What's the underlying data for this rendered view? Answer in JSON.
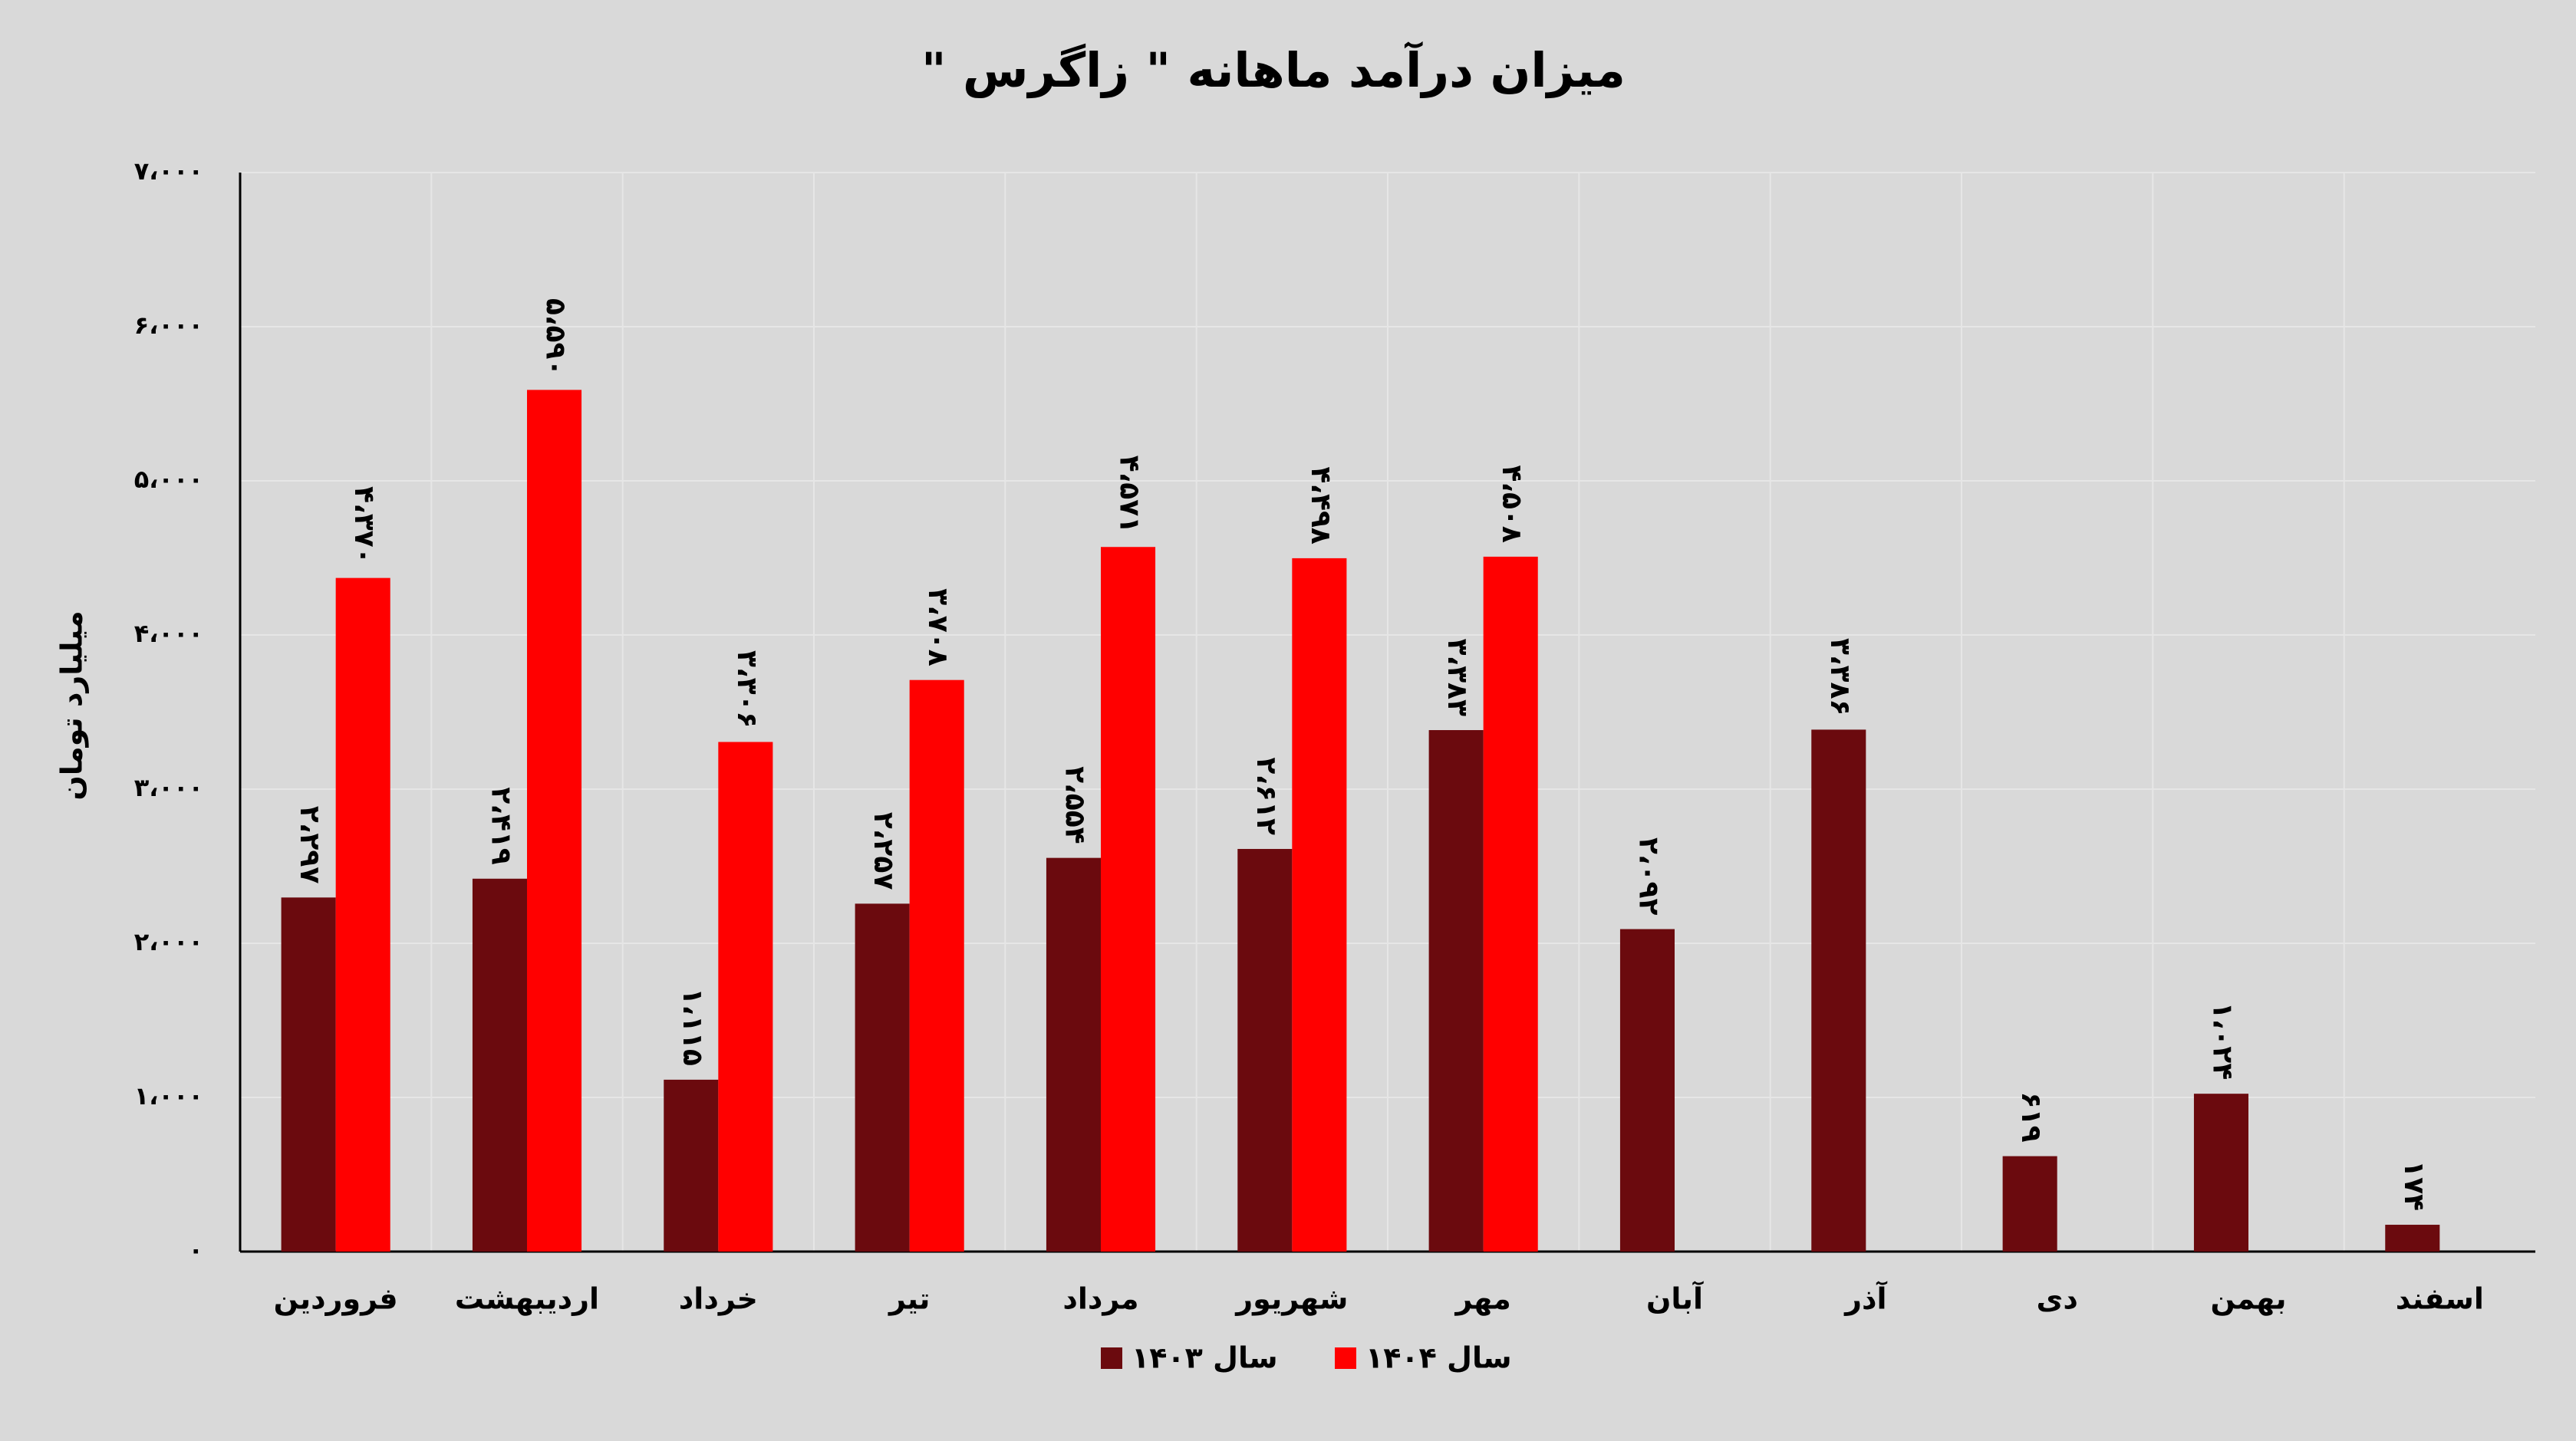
{
  "chart_data": {
    "type": "bar",
    "title": "میزان درآمد ماهانه \" زاگرس \"",
    "y_label": "میلیارد تومان",
    "categories": [
      "فروردین",
      "اردیبهشت",
      "خرداد",
      "تیر",
      "مرداد",
      "شهریور",
      "مهر",
      "آبان",
      "آذر",
      "دی",
      "بهمن",
      "اسفند"
    ],
    "series": [
      {
        "name": "سال ۱۴۰۳",
        "color": "#6b0a0e",
        "values": [
          2297,
          2419,
          1115,
          2257,
          2554,
          2612,
          3383,
          2092,
          3386,
          619,
          1024,
          174
        ],
        "value_labels": [
          "۲،۲۹۷",
          "۲،۴۱۹",
          "۱،۱۱۵",
          "۲،۲۵۷",
          "۲،۵۵۴",
          "۲،۶۱۲",
          "۳،۳۸۳",
          "۲،۰۹۲",
          "۳،۳۸۶",
          "۶۱۹",
          "۱،۰۲۴",
          "۱۷۴"
        ]
      },
      {
        "name": "سال ۱۴۰۴",
        "color": "#ff0000",
        "values": [
          4370,
          5590,
          3306,
          3708,
          4571,
          4498,
          4508,
          null,
          null,
          null,
          null,
          null
        ],
        "value_labels": [
          "۴،۳۷۰",
          "۵،۵۹۰",
          "۳،۳۰۶",
          "۳،۷۰۸",
          "۴،۵۷۱",
          "۴،۴۹۸",
          "۴،۵۰۸",
          null,
          null,
          null,
          null,
          null
        ]
      }
    ],
    "ylim": [
      0,
      7000
    ],
    "yticks": [
      {
        "value": 0,
        "label": "۰"
      },
      {
        "value": 1000,
        "label": "۱،۰۰۰"
      },
      {
        "value": 2000,
        "label": "۲،۰۰۰"
      },
      {
        "value": 3000,
        "label": "۳،۰۰۰"
      },
      {
        "value": 4000,
        "label": "۴،۰۰۰"
      },
      {
        "value": 5000,
        "label": "۵،۰۰۰"
      },
      {
        "value": 6000,
        "label": "۶،۰۰۰"
      },
      {
        "value": 7000,
        "label": "۷،۰۰۰"
      }
    ],
    "grid": true
  }
}
